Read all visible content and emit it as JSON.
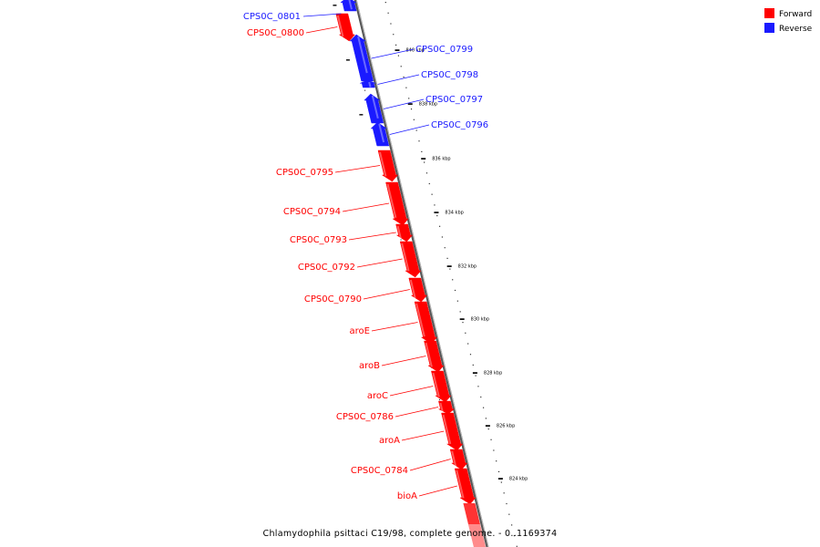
{
  "colors": {
    "forward": "#ff0000",
    "reverse": "#1a1aff",
    "backbone": "#888888"
  },
  "legend": [
    {
      "label": "Forward",
      "color": "#ff0000"
    },
    {
      "label": "Reverse",
      "color": "#1a1aff"
    }
  ],
  "caption": "Chlamydophila psittaci C19/98, complete genome. - 0..1169374",
  "ticks": [
    "840 kbp",
    "838 kbp",
    "836 kbp",
    "834 kbp",
    "832 kbp",
    "830 kbp",
    "828 kbp",
    "826 kbp",
    "824 kbp"
  ],
  "genes": [
    {
      "name": "CPS0C_0801",
      "strand": "reverse"
    },
    {
      "name": "CPS0C_0800",
      "strand": "forward"
    },
    {
      "name": "CPS0C_0799",
      "strand": "reverse"
    },
    {
      "name": "CPS0C_0798",
      "strand": "reverse"
    },
    {
      "name": "CPS0C_0797",
      "strand": "reverse"
    },
    {
      "name": "CPS0C_0796",
      "strand": "reverse"
    },
    {
      "name": "CPS0C_0795",
      "strand": "forward"
    },
    {
      "name": "CPS0C_0794",
      "strand": "forward"
    },
    {
      "name": "CPS0C_0793",
      "strand": "forward"
    },
    {
      "name": "CPS0C_0792",
      "strand": "forward"
    },
    {
      "name": "CPS0C_0790",
      "strand": "forward"
    },
    {
      "name": "aroE",
      "strand": "forward"
    },
    {
      "name": "aroB",
      "strand": "forward"
    },
    {
      "name": "aroC",
      "strand": "forward"
    },
    {
      "name": "CPS0C_0786",
      "strand": "forward"
    },
    {
      "name": "aroA",
      "strand": "forward"
    },
    {
      "name": "CPS0C_0784",
      "strand": "forward"
    },
    {
      "name": "bioA",
      "strand": "forward"
    }
  ]
}
